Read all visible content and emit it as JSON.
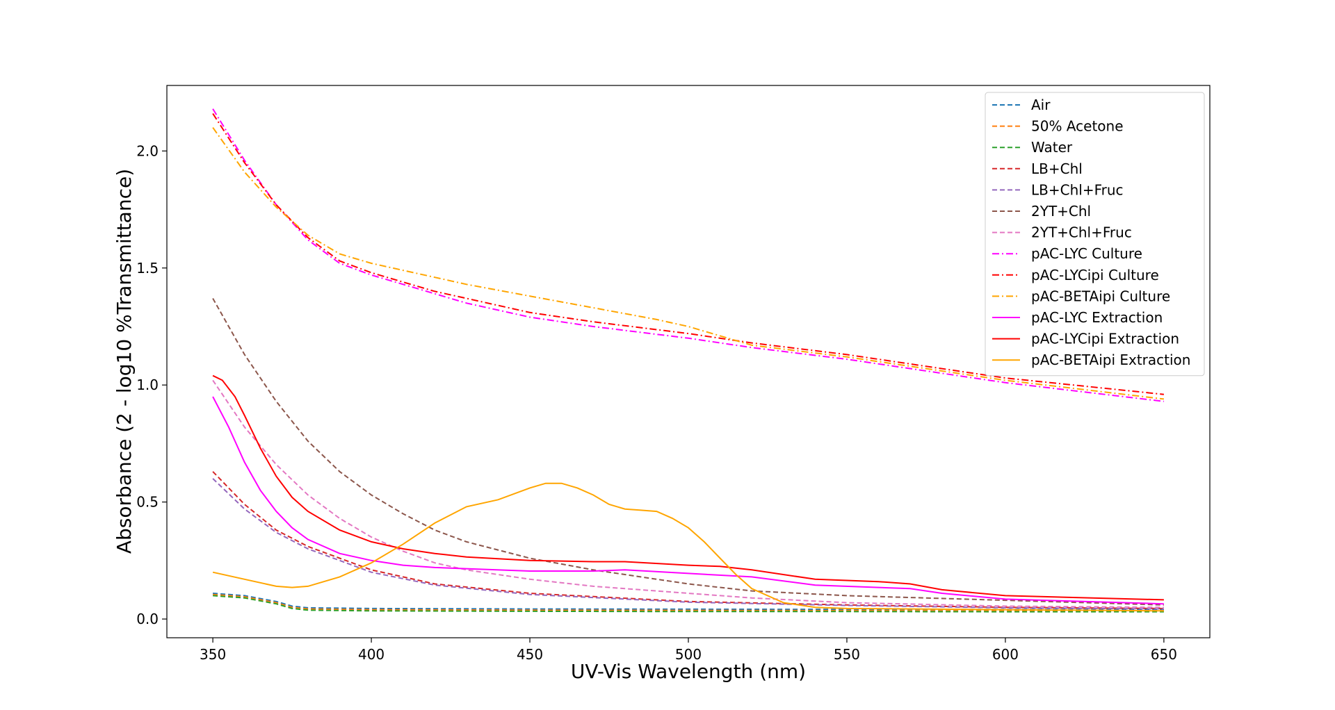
{
  "chart_data": {
    "type": "line",
    "title": "",
    "xlabel": "UV-Vis Wavelength (nm)",
    "ylabel": "Absorbance (2 - log10 %Transmittance)",
    "xlim": [
      335.5,
      664.5
    ],
    "ylim": [
      -0.08,
      2.28
    ],
    "xticks": [
      350,
      400,
      450,
      500,
      550,
      600,
      650
    ],
    "yticks": [
      0.0,
      0.5,
      1.0,
      1.5,
      2.0
    ],
    "ytick_labels": [
      "0.0",
      "0.5",
      "1.0",
      "1.5",
      "2.0"
    ],
    "grid": false,
    "legend_position": "upper right",
    "series": [
      {
        "name": "Air",
        "color": "#1f77b4",
        "linestyle": "dashed",
        "x": [
          350,
          360,
          370,
          375,
          380,
          400,
          450,
          500,
          550,
          600,
          650
        ],
        "y": [
          0.11,
          0.1,
          0.075,
          0.055,
          0.048,
          0.045,
          0.043,
          0.042,
          0.041,
          0.041,
          0.04
        ]
      },
      {
        "name": "50% Acetone",
        "color": "#ff7f0e",
        "linestyle": "dashed",
        "x": [
          350,
          360,
          370,
          375,
          380,
          400,
          450,
          500,
          550,
          600,
          650
        ],
        "y": [
          0.105,
          0.095,
          0.07,
          0.05,
          0.043,
          0.04,
          0.038,
          0.037,
          0.036,
          0.035,
          0.035
        ]
      },
      {
        "name": "Water",
        "color": "#2ca02c",
        "linestyle": "dashed",
        "x": [
          350,
          360,
          370,
          375,
          380,
          400,
          450,
          500,
          550,
          600,
          650
        ],
        "y": [
          0.1,
          0.09,
          0.065,
          0.045,
          0.038,
          0.035,
          0.033,
          0.032,
          0.032,
          0.031,
          0.031
        ]
      },
      {
        "name": "LB+Chl",
        "color": "#d62728",
        "linestyle": "dashed",
        "x": [
          350,
          360,
          370,
          380,
          390,
          400,
          420,
          450,
          500,
          550,
          600,
          650
        ],
        "y": [
          0.63,
          0.49,
          0.38,
          0.31,
          0.26,
          0.21,
          0.15,
          0.11,
          0.075,
          0.06,
          0.05,
          0.045
        ]
      },
      {
        "name": "LB+Chl+Fruc",
        "color": "#9467bd",
        "linestyle": "dashed",
        "x": [
          350,
          360,
          370,
          380,
          390,
          400,
          420,
          450,
          500,
          550,
          600,
          650
        ],
        "y": [
          0.6,
          0.47,
          0.37,
          0.3,
          0.25,
          0.2,
          0.145,
          0.105,
          0.072,
          0.058,
          0.048,
          0.043
        ]
      },
      {
        "name": "2YT+Chl",
        "color": "#8c564b",
        "linestyle": "dashed",
        "x": [
          350,
          360,
          370,
          380,
          390,
          400,
          410,
          420,
          430,
          450,
          470,
          500,
          520,
          550,
          600,
          650
        ],
        "y": [
          1.37,
          1.13,
          0.93,
          0.76,
          0.63,
          0.53,
          0.45,
          0.38,
          0.33,
          0.26,
          0.21,
          0.15,
          0.12,
          0.1,
          0.08,
          0.06
        ]
      },
      {
        "name": "2YT+Chl+Fruc",
        "color": "#e377c2",
        "linestyle": "dashed",
        "x": [
          350,
          360,
          370,
          380,
          390,
          400,
          410,
          420,
          430,
          450,
          470,
          500,
          520,
          550,
          600,
          650
        ],
        "y": [
          1.02,
          0.82,
          0.66,
          0.53,
          0.43,
          0.35,
          0.29,
          0.24,
          0.21,
          0.17,
          0.14,
          0.11,
          0.09,
          0.07,
          0.055,
          0.05
        ]
      },
      {
        "name": "pAC-LYC Culture",
        "color": "#ff00ff",
        "linestyle": "dashdot",
        "x": [
          350,
          360,
          370,
          380,
          390,
          400,
          410,
          420,
          430,
          450,
          470,
          500,
          520,
          550,
          600,
          650
        ],
        "y": [
          2.18,
          1.96,
          1.77,
          1.62,
          1.52,
          1.47,
          1.43,
          1.39,
          1.35,
          1.29,
          1.25,
          1.2,
          1.16,
          1.11,
          1.01,
          0.93
        ]
      },
      {
        "name": "pAC-LYCipi Culture",
        "color": "#ff0000",
        "linestyle": "dashdot",
        "x": [
          350,
          360,
          370,
          380,
          390,
          400,
          410,
          420,
          430,
          450,
          470,
          500,
          520,
          550,
          600,
          650
        ],
        "y": [
          2.16,
          1.95,
          1.77,
          1.63,
          1.53,
          1.48,
          1.44,
          1.4,
          1.37,
          1.31,
          1.27,
          1.22,
          1.18,
          1.13,
          1.03,
          0.96
        ]
      },
      {
        "name": "pAC-BETAipi Culture",
        "color": "#ffa500",
        "linestyle": "dashdot",
        "x": [
          350,
          360,
          370,
          380,
          390,
          400,
          410,
          420,
          430,
          450,
          470,
          490,
          500,
          520,
          550,
          600,
          650
        ],
        "y": [
          2.1,
          1.91,
          1.76,
          1.64,
          1.56,
          1.52,
          1.49,
          1.46,
          1.43,
          1.38,
          1.33,
          1.28,
          1.25,
          1.17,
          1.12,
          1.02,
          0.94
        ]
      },
      {
        "name": "pAC-LYC Extraction",
        "color": "#ff00ff",
        "linestyle": "solid",
        "x": [
          350,
          355,
          360,
          365,
          370,
          375,
          380,
          390,
          400,
          410,
          420,
          430,
          450,
          470,
          480,
          500,
          520,
          540,
          560,
          570,
          580,
          600,
          650
        ],
        "y": [
          0.95,
          0.82,
          0.67,
          0.55,
          0.46,
          0.39,
          0.34,
          0.28,
          0.25,
          0.23,
          0.22,
          0.215,
          0.205,
          0.205,
          0.21,
          0.195,
          0.18,
          0.145,
          0.135,
          0.13,
          0.11,
          0.085,
          0.065
        ]
      },
      {
        "name": "pAC-LYCipi Extraction",
        "color": "#ff0000",
        "linestyle": "solid",
        "x": [
          350,
          353,
          357,
          360,
          365,
          370,
          375,
          380,
          390,
          400,
          410,
          420,
          430,
          450,
          470,
          480,
          500,
          510,
          520,
          540,
          560,
          570,
          580,
          600,
          650
        ],
        "y": [
          1.04,
          1.02,
          0.95,
          0.87,
          0.73,
          0.61,
          0.52,
          0.46,
          0.38,
          0.33,
          0.3,
          0.28,
          0.265,
          0.25,
          0.245,
          0.245,
          0.23,
          0.225,
          0.21,
          0.17,
          0.16,
          0.15,
          0.125,
          0.1,
          0.082
        ]
      },
      {
        "name": "pAC-BETAipi Extraction",
        "color": "#ffa500",
        "linestyle": "solid",
        "x": [
          350,
          360,
          370,
          375,
          380,
          390,
          400,
          410,
          420,
          430,
          440,
          450,
          455,
          460,
          465,
          470,
          475,
          480,
          485,
          490,
          495,
          500,
          505,
          510,
          515,
          520,
          530,
          540,
          550,
          600,
          650
        ],
        "y": [
          0.2,
          0.17,
          0.14,
          0.135,
          0.14,
          0.18,
          0.24,
          0.32,
          0.41,
          0.48,
          0.51,
          0.56,
          0.58,
          0.58,
          0.56,
          0.53,
          0.49,
          0.47,
          0.465,
          0.46,
          0.43,
          0.39,
          0.33,
          0.26,
          0.19,
          0.13,
          0.07,
          0.05,
          0.045,
          0.04,
          0.035
        ]
      }
    ]
  }
}
